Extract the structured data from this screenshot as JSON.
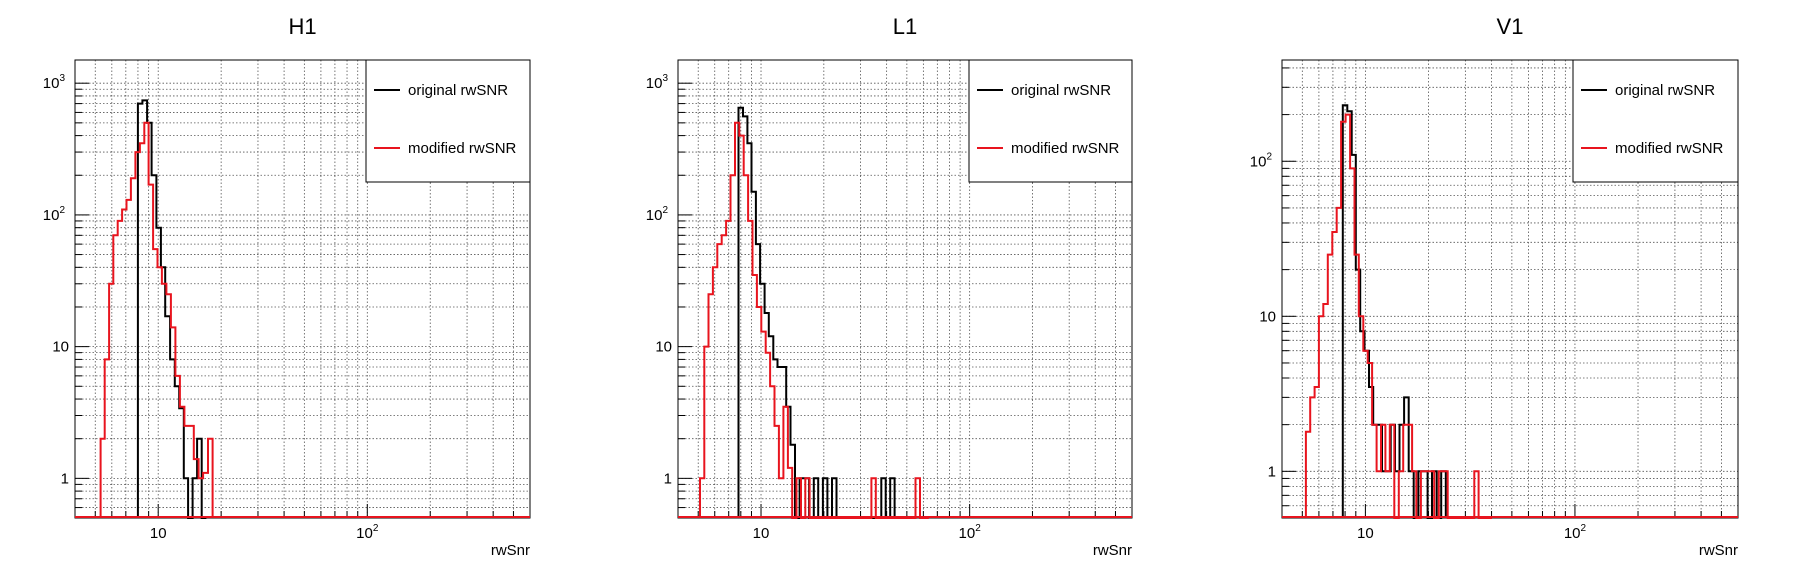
{
  "colors": {
    "original": "#000000",
    "modified": "#e8141e",
    "grid": "#555555"
  },
  "chart_data": [
    {
      "type": "histogram",
      "title": "H1",
      "xlabel": "rwSnr",
      "xscale": "log",
      "yscale": "log",
      "xlim": [
        4.0,
        600
      ],
      "ylim": [
        0.5,
        1500
      ],
      "xticks": [
        {
          "v": 10,
          "base": "10",
          "exp": ""
        },
        {
          "v": 100,
          "base": "10",
          "exp": "2"
        }
      ],
      "yticks": [
        {
          "v": 1,
          "base": "1",
          "exp": ""
        },
        {
          "v": 10,
          "base": "10",
          "exp": ""
        },
        {
          "v": 100,
          "base": "10",
          "exp": "2"
        },
        {
          "v": 1000,
          "base": "10",
          "exp": "3"
        }
      ],
      "grid": true,
      "legend": {
        "placement": "top-right",
        "entries": [
          "original rwSNR",
          "modified rwSNR"
        ]
      },
      "series": [
        {
          "name": "original rwSNR",
          "color": "#000000",
          "edges": [
            8.0,
            8.4,
            8.85,
            9.3,
            9.8,
            10.3,
            10.8,
            11.4,
            12.0,
            12.6,
            13.25,
            13.9,
            14.6,
            15.35,
            16.15,
            17.0
          ],
          "values": [
            700,
            740,
            500,
            200,
            80,
            40,
            17,
            8,
            5,
            3.4,
            1.0,
            0.5,
            1,
            2,
            0.5
          ]
        },
        {
          "name": "modified rwSNR",
          "color": "#e8141e",
          "edges": [
            5.3,
            5.55,
            5.82,
            6.1,
            6.4,
            6.72,
            7.05,
            7.4,
            7.78,
            8.17,
            8.58,
            9.0,
            9.45,
            9.92,
            10.42,
            10.94,
            11.5,
            12.08,
            12.7,
            13.35,
            14.05,
            14.8,
            15.6,
            16.4,
            17.3,
            18.2
          ],
          "values": [
            2,
            8,
            30,
            70,
            90,
            110,
            130,
            190,
            300,
            350,
            500,
            170,
            55,
            40,
            30,
            25,
            14,
            6,
            3.5,
            2.5,
            2.5,
            1.4,
            1.0,
            1.1,
            2
          ]
        }
      ]
    },
    {
      "type": "histogram",
      "title": "L1",
      "xlabel": "rwSnr",
      "xscale": "log",
      "yscale": "log",
      "xlim": [
        4.0,
        600
      ],
      "ylim": [
        0.5,
        1500
      ],
      "xticks": [
        {
          "v": 10,
          "base": "10",
          "exp": ""
        },
        {
          "v": 100,
          "base": "10",
          "exp": "2"
        }
      ],
      "yticks": [
        {
          "v": 1,
          "base": "1",
          "exp": ""
        },
        {
          "v": 10,
          "base": "10",
          "exp": ""
        },
        {
          "v": 100,
          "base": "10",
          "exp": "2"
        },
        {
          "v": 1000,
          "base": "10",
          "exp": "3"
        }
      ],
      "grid": true,
      "legend": {
        "placement": "top-right",
        "entries": [
          "original rwSNR",
          "modified rwSNR"
        ]
      },
      "series": [
        {
          "name": "original rwSNR",
          "color": "#000000",
          "edges": [
            7.8,
            8.2,
            8.6,
            9.0,
            9.45,
            9.9,
            10.4,
            10.9,
            11.45,
            12.0,
            12.6,
            13.2,
            13.85,
            14.55,
            15.3,
            16.1,
            17.0,
            17.9,
            18.8,
            19.8,
            20.8,
            21.9,
            23.0,
            24.2,
            25.4,
            26.7,
            28.0,
            29.5,
            31.0,
            32.5,
            34.2,
            35.9,
            37.7,
            39.6,
            41.6,
            43.7,
            45.9,
            48.2
          ],
          "values": [
            650,
            560,
            350,
            150,
            60,
            30,
            18,
            12,
            8,
            7,
            7,
            3.5,
            1.8,
            0.5,
            1,
            1,
            0.5,
            1,
            0.5,
            1,
            0.5,
            1,
            0.5,
            0.5,
            0.5,
            0.5,
            0.5,
            0.5,
            0.5,
            0.5,
            0.5,
            0.5,
            1,
            0.5,
            1,
            0.5,
            0.5
          ]
        },
        {
          "name": "modified rwSNR",
          "color": "#e8141e",
          "edges": [
            5.1,
            5.35,
            5.6,
            5.88,
            6.17,
            6.48,
            6.8,
            7.14,
            7.5,
            7.87,
            8.26,
            8.67,
            9.1,
            9.55,
            10.03,
            10.53,
            11.05,
            11.6,
            12.18,
            12.8,
            13.45,
            14.1,
            14.8,
            15.55,
            16.3,
            17.1,
            18.0,
            18.9,
            19.8,
            20.8,
            21.8,
            22.9,
            24.1,
            25.3,
            26.5,
            27.8,
            29.2,
            30.7,
            32.2,
            33.8,
            35.5,
            37.3,
            39.1,
            41.1,
            43.1,
            45.3,
            47.5,
            49.9,
            52.4,
            55.0,
            57.8,
            60.7,
            63.7
          ],
          "values": [
            1,
            10,
            25,
            40,
            60,
            70,
            90,
            200,
            500,
            400,
            200,
            90,
            35,
            20,
            13,
            9,
            5,
            2.5,
            1,
            3.5,
            1.2,
            0.5,
            1,
            0.5,
            1,
            0.5,
            0.5,
            0.5,
            0.5,
            0.5,
            0.5,
            0.5,
            0.5,
            0.5,
            0.5,
            0.5,
            0.5,
            0.5,
            0.5,
            1,
            0.5,
            0.5,
            0.5,
            0.5,
            0.5,
            0.5,
            0.5,
            0.5,
            0.5,
            1,
            0.5,
            0.5
          ]
        }
      ]
    },
    {
      "type": "histogram",
      "title": "V1",
      "xlabel": "rwSnr",
      "xscale": "log",
      "yscale": "log",
      "xlim": [
        4.0,
        600
      ],
      "ylim": [
        0.5,
        450
      ],
      "xticks": [
        {
          "v": 10,
          "base": "10",
          "exp": ""
        },
        {
          "v": 100,
          "base": "10",
          "exp": "2"
        }
      ],
      "yticks": [
        {
          "v": 1,
          "base": "1",
          "exp": ""
        },
        {
          "v": 10,
          "base": "10",
          "exp": ""
        },
        {
          "v": 100,
          "base": "10",
          "exp": "2"
        }
      ],
      "grid": true,
      "legend": {
        "placement": "top-right",
        "entries": [
          "original rwSNR",
          "modified rwSNR"
        ]
      },
      "series": [
        {
          "name": "original rwSNR",
          "color": "#000000",
          "edges": [
            7.8,
            8.2,
            8.6,
            9.0,
            9.45,
            9.9,
            10.4,
            10.9,
            11.45,
            12.0,
            12.6,
            13.2,
            13.85,
            14.55,
            15.3,
            16.1,
            17.0,
            17.9,
            18.8,
            19.8,
            20.8,
            21.9,
            23.0,
            24.2
          ],
          "values": [
            230,
            210,
            110,
            20,
            8,
            6,
            3.5,
            2,
            2,
            1,
            1,
            2,
            1,
            2,
            3,
            1,
            0.5,
            1,
            1,
            0.5,
            1,
            0.5,
            1
          ]
        },
        {
          "name": "modified rwSNR",
          "color": "#e8141e",
          "edges": [
            5.2,
            5.45,
            5.72,
            6.0,
            6.3,
            6.62,
            6.95,
            7.3,
            7.66,
            8.05,
            8.45,
            8.87,
            9.3,
            9.77,
            10.26,
            10.77,
            11.31,
            11.87,
            12.46,
            13.08,
            13.74,
            14.43,
            15.15,
            15.9,
            16.7,
            17.5,
            18.4,
            19.3,
            20.3,
            21.3,
            22.4,
            23.5,
            24.7,
            25.9,
            27.2,
            28.6,
            30.0,
            31.5,
            33.1,
            34.7,
            36.5,
            38.3,
            40.2
          ],
          "values": [
            1.8,
            3,
            3.5,
            10,
            12,
            25,
            35,
            50,
            180,
            200,
            90,
            25,
            10,
            6,
            5,
            2,
            1,
            2,
            1,
            2,
            0.5,
            1,
            2,
            2,
            1,
            0.5,
            1,
            1,
            1,
            0.5,
            1,
            1,
            0.5,
            0.5,
            0.5,
            0.5,
            0.5,
            0.5,
            1,
            0.5,
            0.5,
            0.5
          ]
        }
      ]
    }
  ]
}
